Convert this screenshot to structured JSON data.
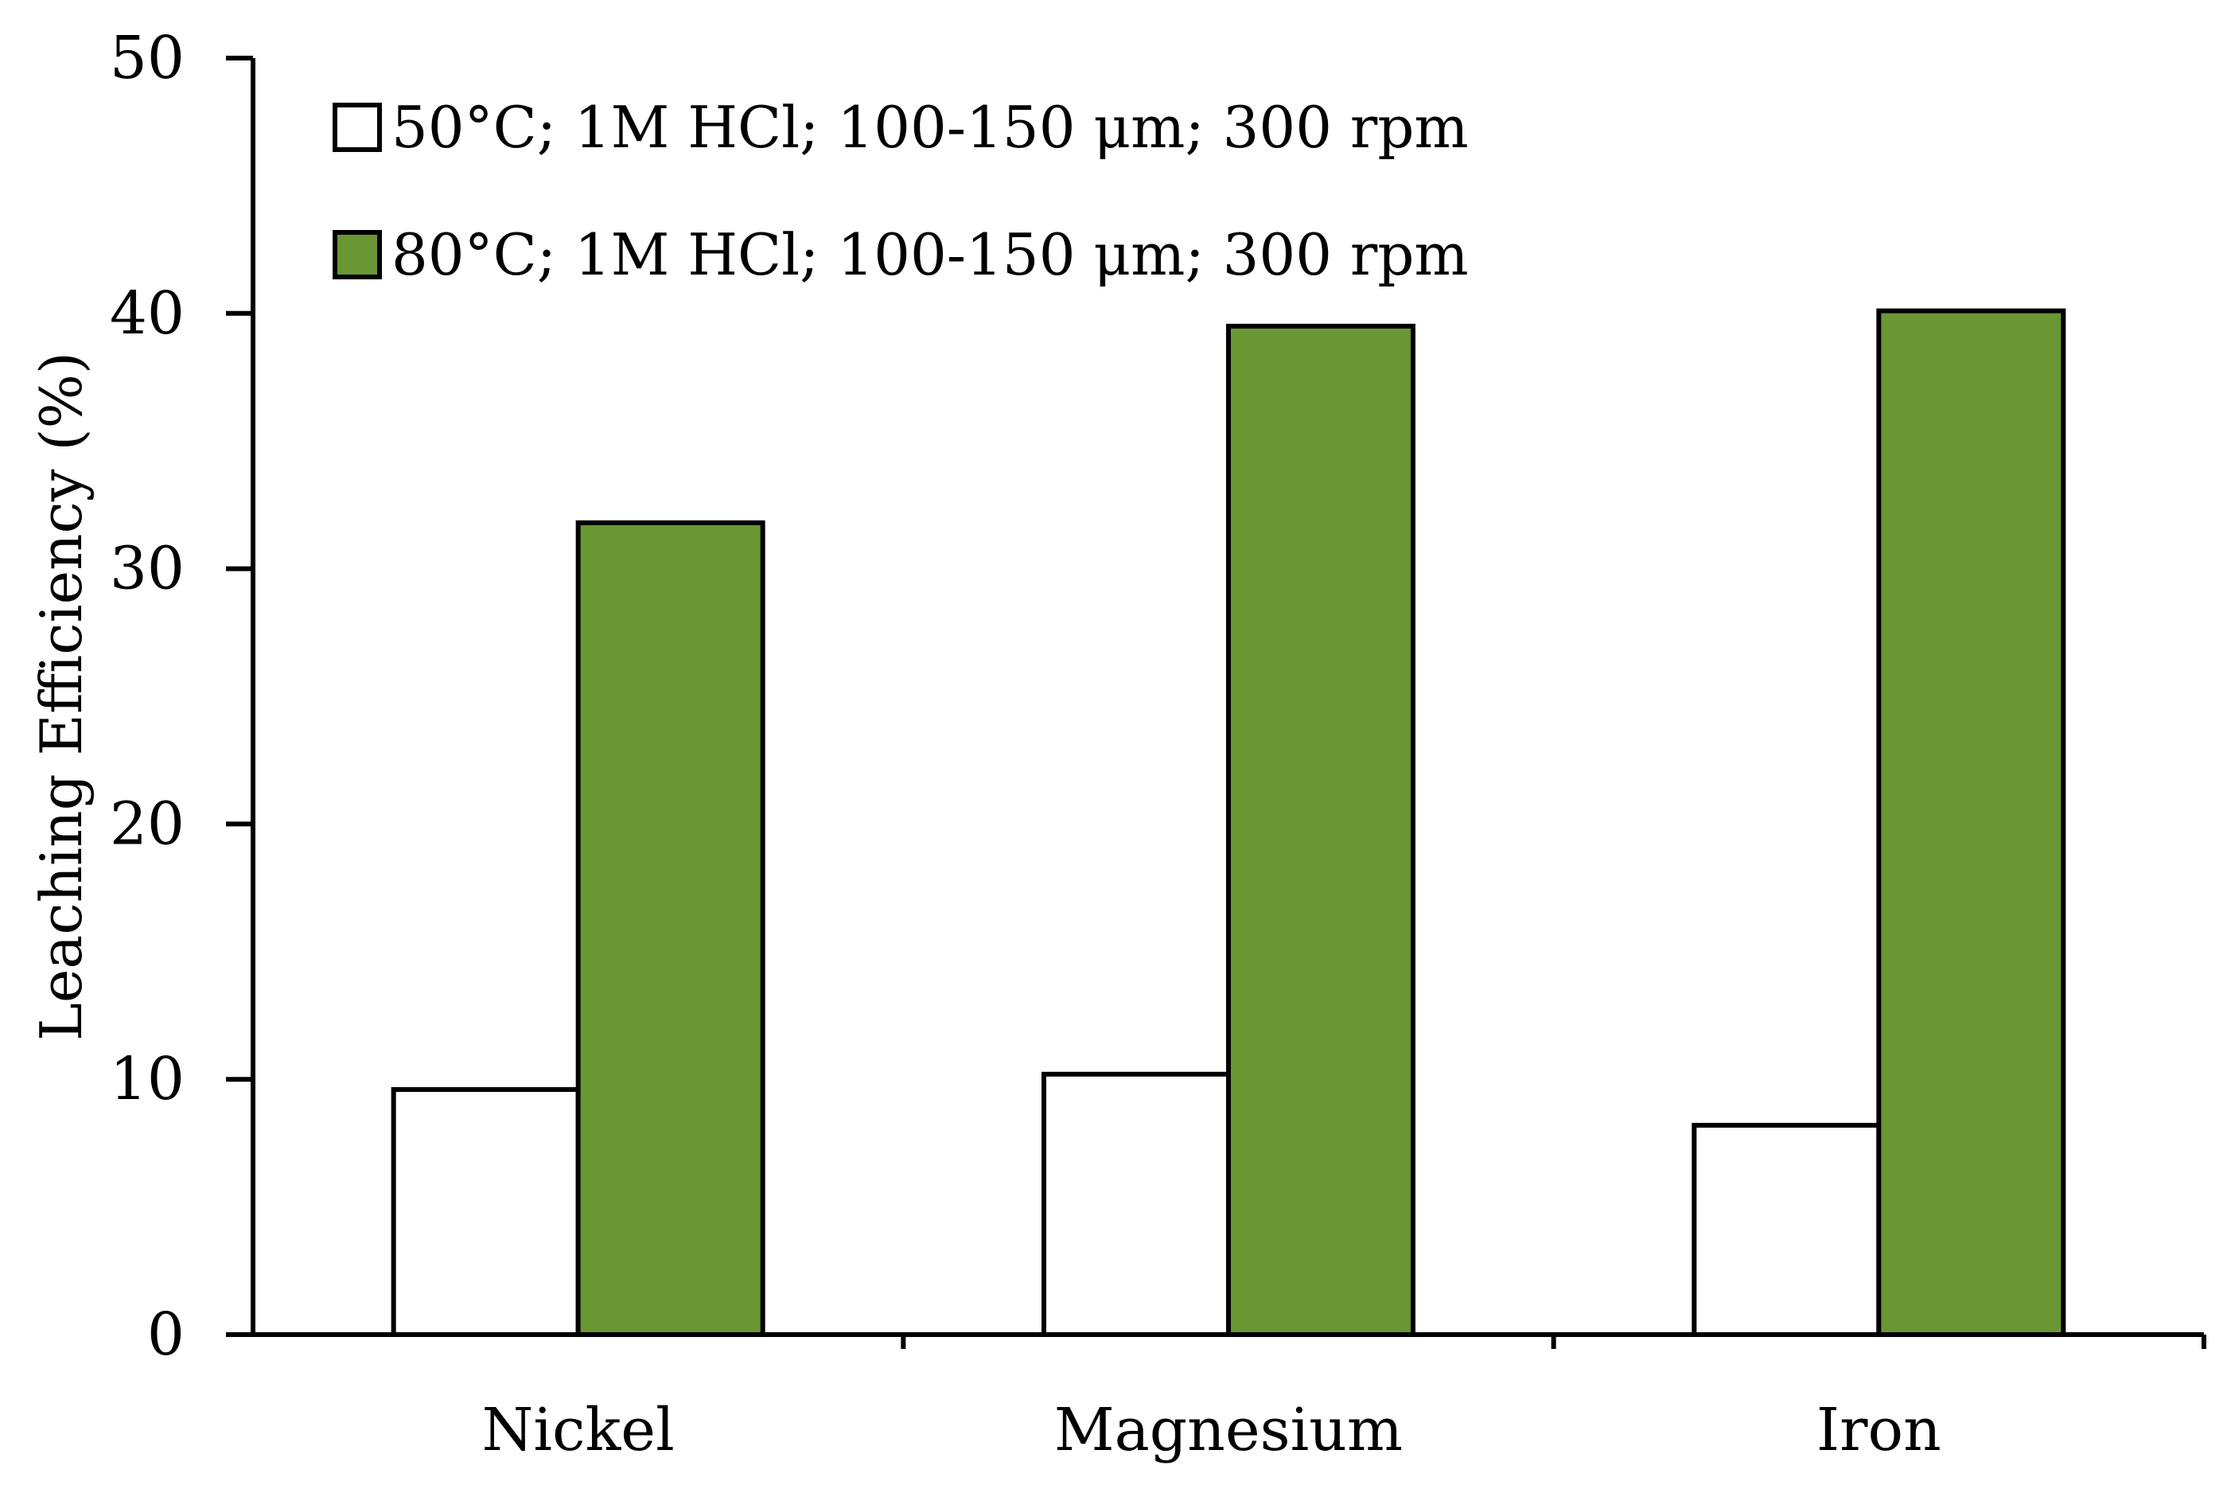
{
  "chart_data": {
    "type": "bar",
    "title": "",
    "xlabel": "",
    "ylabel": "Leaching Efficiency (%)",
    "ylim": [
      0,
      50
    ],
    "yticks": [
      0,
      10,
      20,
      30,
      40,
      50
    ],
    "grid": false,
    "legend_position": "top-left",
    "categories": [
      "Nickel",
      "Magnesium",
      "Iron"
    ],
    "series": [
      {
        "name": "50°C; 1M HCl; 100-150 μm; 300 rpm",
        "values": [
          9.6,
          10.2,
          8.2
        ],
        "color": "#ffffff"
      },
      {
        "name": "80°C; 1M HCl; 100-150 μm; 300 rpm",
        "values": [
          31.8,
          39.5,
          40.1
        ],
        "color": "#6a9634"
      }
    ]
  },
  "colors": {
    "axis": "#000000",
    "bar_outline": "#000000"
  }
}
